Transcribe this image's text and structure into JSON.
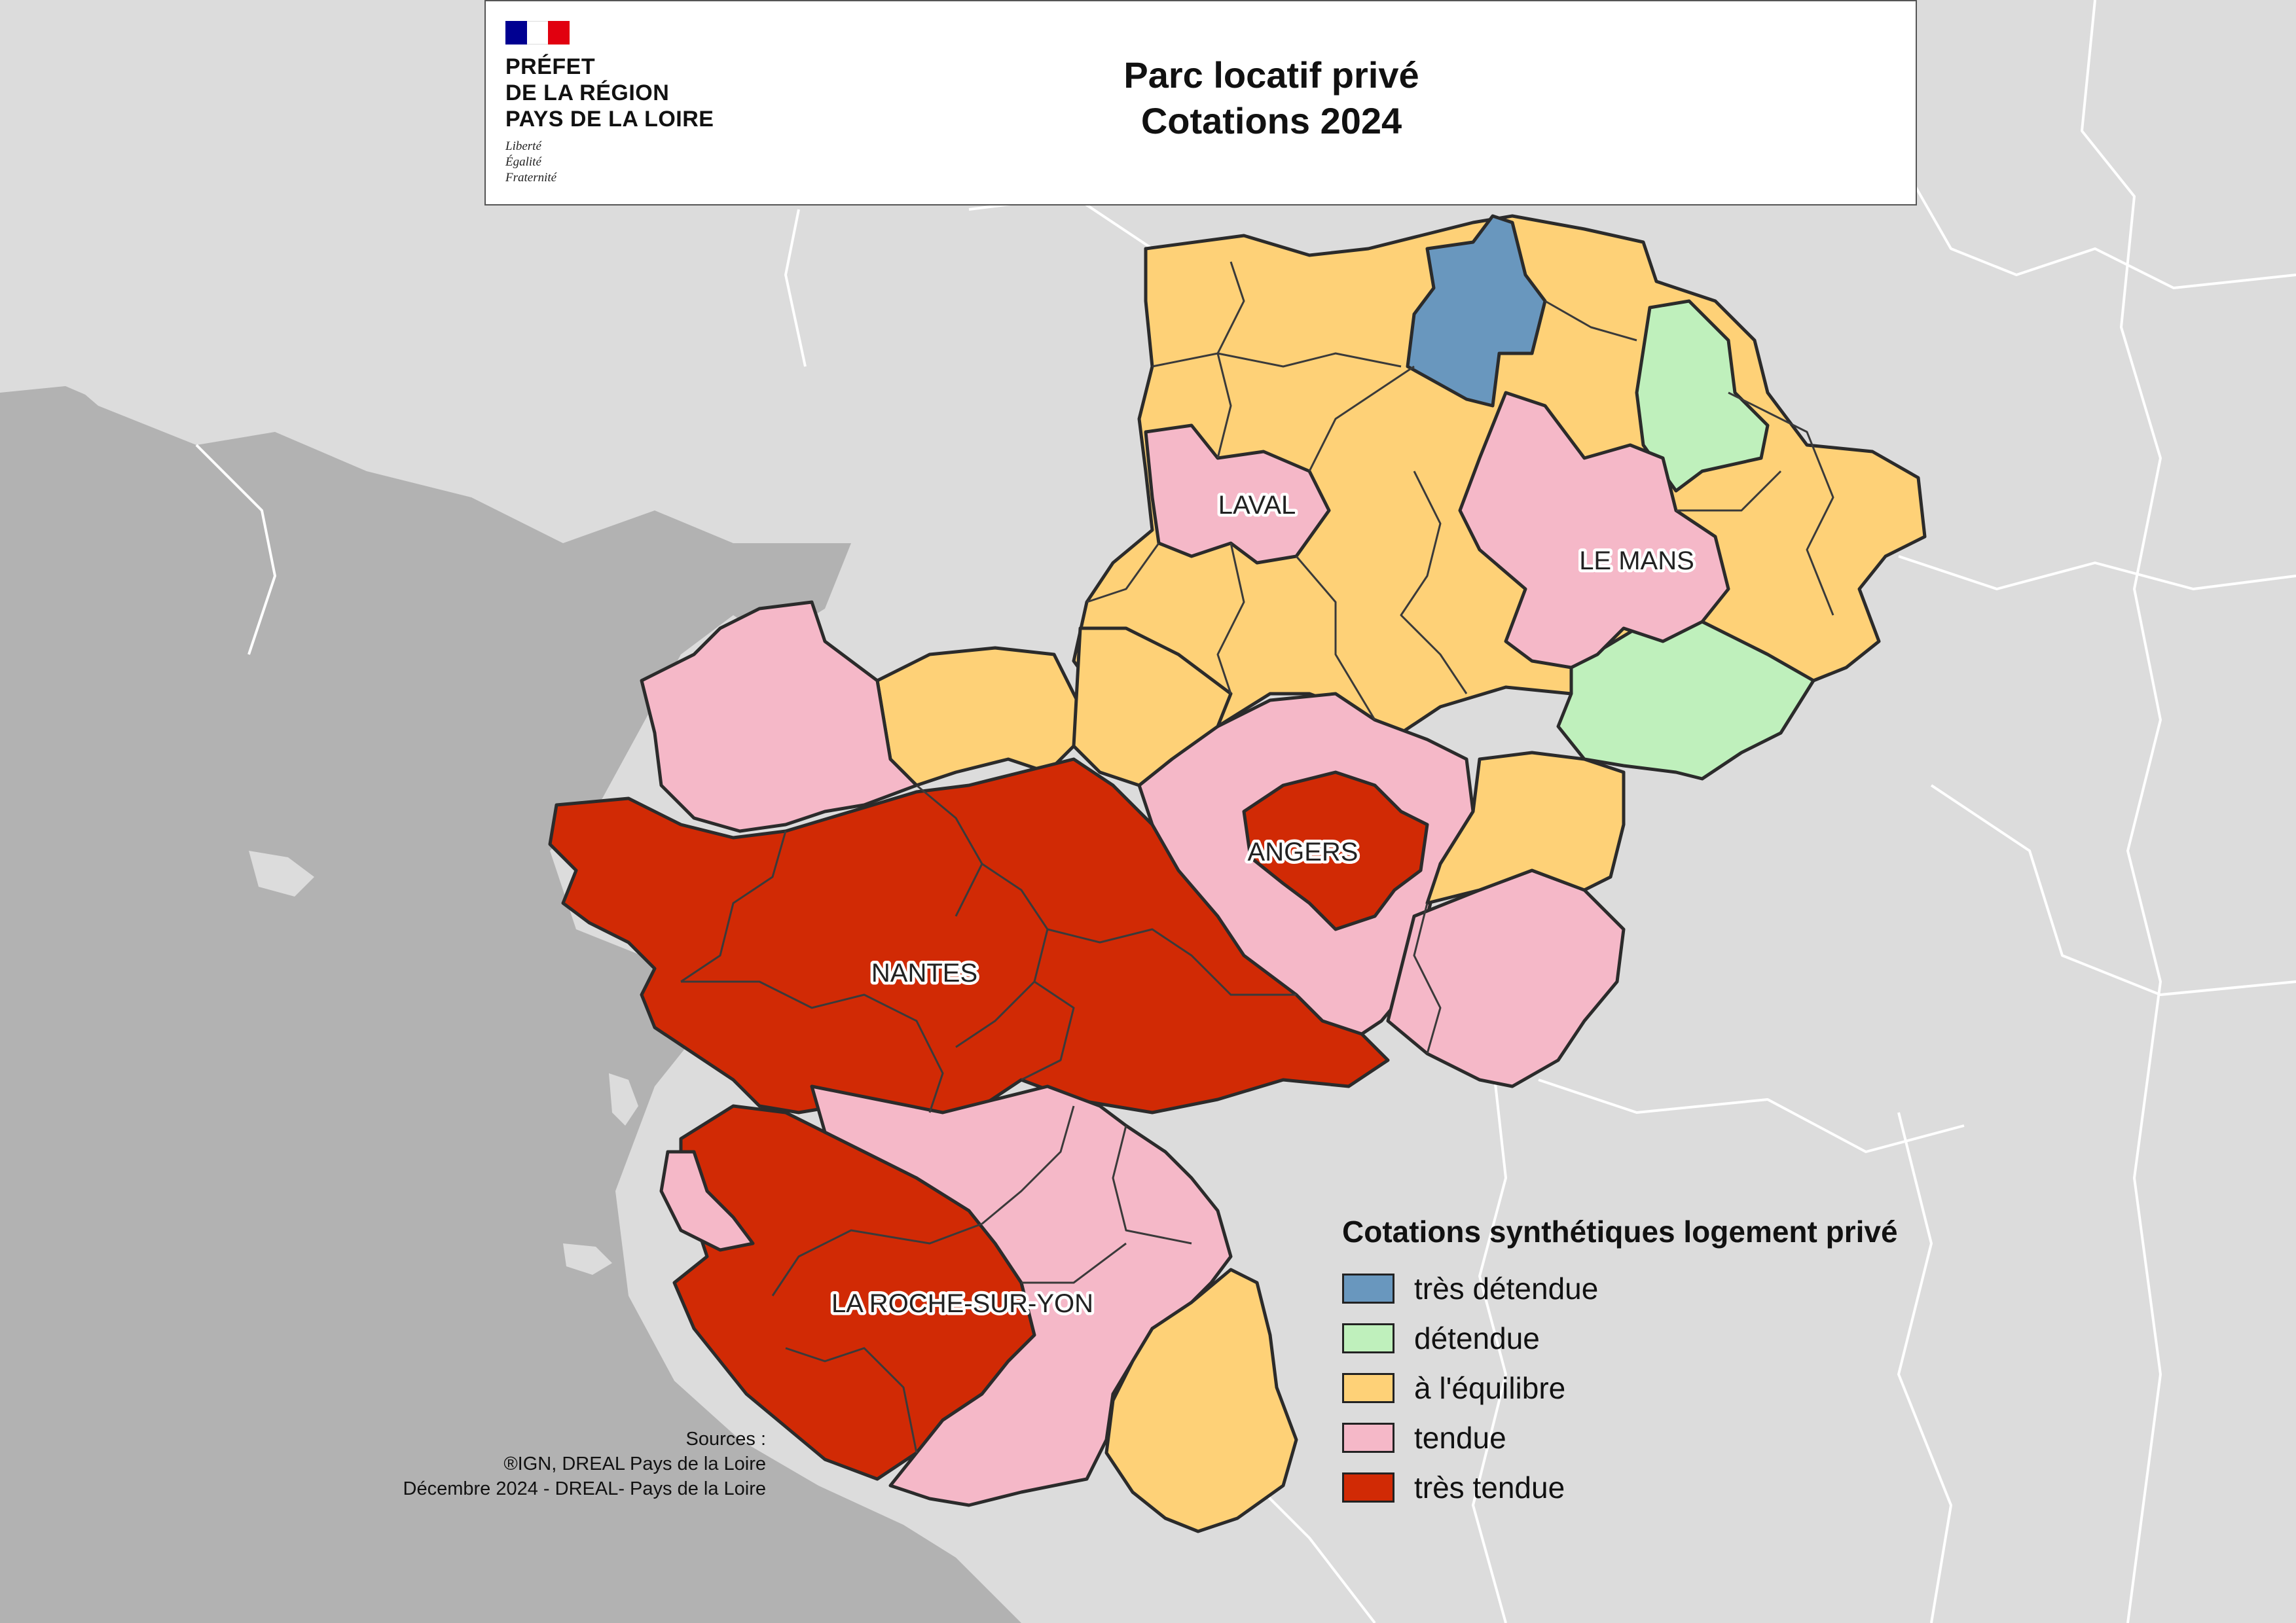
{
  "header": {
    "logo_lines": [
      "PRÉFET",
      "DE LA RÉGION",
      "PAYS DE LA LOIRE"
    ],
    "motto_lines": [
      "Liberté",
      "Égalité",
      "Fraternité"
    ],
    "title_line1": "Parc locatif privé",
    "title_line2": "Cotations 2024"
  },
  "map": {
    "background_color": "#b2b2b2",
    "land_color": "#dcdcdc",
    "city_labels": [
      "LAVAL",
      "LE MANS",
      "ANGERS",
      "NANTES",
      "LA ROCHE-SUR-YON"
    ]
  },
  "legend": {
    "title": "Cotations synthétiques logement privé",
    "items": [
      {
        "label": "très détendue",
        "color": "#6997be"
      },
      {
        "label": "détendue",
        "color": "#bff0bc"
      },
      {
        "label": "à l'équilibre",
        "color": "#fed177"
      },
      {
        "label": "tendue",
        "color": "#f5b8c8"
      },
      {
        "label": "très tendue",
        "color": "#d12a05"
      }
    ]
  },
  "sources": {
    "line1": "Sources :",
    "line2": "®IGN, DREAL Pays de la Loire",
    "line3": "Décembre 2024 - DREAL- Pays de la Loire"
  }
}
